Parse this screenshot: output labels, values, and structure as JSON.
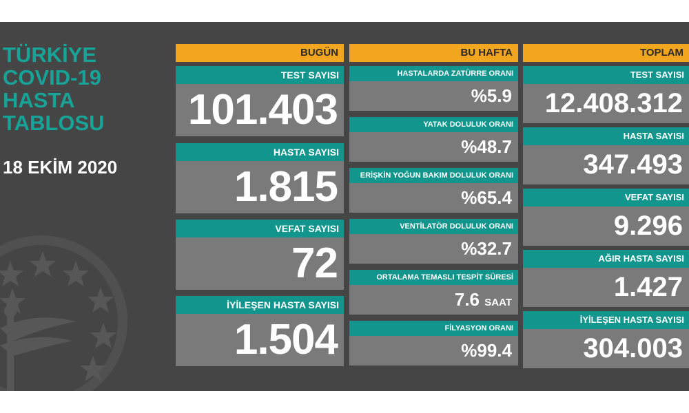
{
  "title_lines": [
    "TÜRKİYE",
    "COVID-19",
    "HASTA",
    "TABLOSU"
  ],
  "date": "18 EKİM 2020",
  "columns": {
    "today": {
      "header": "BUGÜN",
      "cards": [
        {
          "label": "TEST SAYISI",
          "value": "101.403"
        },
        {
          "label": "HASTA SAYISI",
          "value": "1.815"
        },
        {
          "label": "VEFAT SAYISI",
          "value": "72"
        },
        {
          "label": "İYİLEŞEN HASTA SAYISI",
          "value": "1.504"
        }
      ]
    },
    "week": {
      "header": "BU HAFTA",
      "cards": [
        {
          "label": "HASTALARDA ZATÜRRE ORANI",
          "value": "%5.9",
          "unit": ""
        },
        {
          "label": "YATAK DOLULUK ORANI",
          "value": "%48.7",
          "unit": ""
        },
        {
          "label": "ERİŞKİN YOĞUN BAKIM DOLULUK ORANI",
          "value": "%65.4",
          "unit": ""
        },
        {
          "label": "VENTİLATÖR DOLULUK ORANI",
          "value": "%32.7",
          "unit": ""
        },
        {
          "label": "ORTALAMA TEMASLI TESPİT SÜRESİ",
          "value": "7.6",
          "unit": "SAAT"
        },
        {
          "label": "FİLYASYON ORANI",
          "value": "%99.4",
          "unit": ""
        }
      ]
    },
    "total": {
      "header": "TOPLAM",
      "cards": [
        {
          "label": "TEST SAYISI",
          "value": "12.408.312"
        },
        {
          "label": "HASTA SAYISI",
          "value": "347.493"
        },
        {
          "label": "VEFAT SAYISI",
          "value": "9.296"
        },
        {
          "label": "AĞIR HASTA SAYISI",
          "value": "1.427"
        },
        {
          "label": "İYİLEŞEN HASTA SAYISI",
          "value": "304.003"
        }
      ]
    }
  },
  "colors": {
    "background": "#454545",
    "accent_teal": "#11958c",
    "title_teal": "#17a398",
    "header_orange": "#f2a51f",
    "value_gray": "#7a7a7a"
  },
  "emblem": "ministry-of-health-emblem"
}
